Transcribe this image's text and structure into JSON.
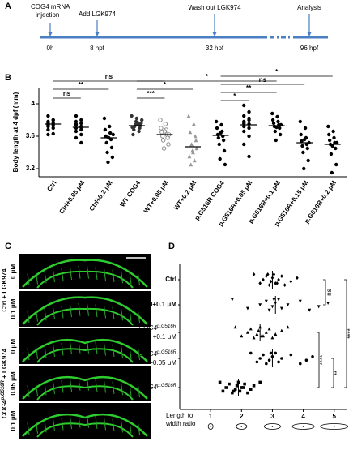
{
  "panel_labels": [
    "A",
    "B",
    "C",
    "D"
  ],
  "timeline": {
    "injection": [
      "COG4 mRNA",
      "injection"
    ],
    "events": [
      "Add LGK974",
      "Wash out LGK974",
      "Analysis"
    ],
    "times": [
      "0h",
      "8 hpf",
      "32 hpf",
      "96 hpf"
    ]
  },
  "microscopy": {
    "groups": [
      {
        "label": "Ctrl + LGK974",
        "doses": [
          "0 μM",
          "0.1 μM"
        ]
      },
      {
        "label": "COG4",
        "sup": "p.G516R",
        "suffix": " + LGK974",
        "doses": [
          "0 μM",
          "0.05 μM",
          "0.1 μM"
        ]
      }
    ]
  },
  "chart_data": [
    {
      "type": "dotplot",
      "ylabel": "Body length at 4 dpf (mm)",
      "ylim": [
        3.1,
        4.2
      ],
      "yticks": [
        3.2,
        3.6,
        4.0
      ],
      "categories": [
        "Ctrl",
        "Ctrl+0.05 μM",
        "Ctrl+0.2 μM",
        "WT COG4",
        "WT+0.05 μM",
        "WT+0.2 μM",
        "p.G516R COG4",
        "p.G516R+0.05 μM",
        "p.G516R+0.1 μM",
        "p.G516R+0.15 μM",
        "p.G516R+0.2 μM"
      ],
      "colors": [
        "#000000",
        "#000000",
        "#000000",
        "#333333",
        "#888888",
        "#999999",
        "#000000",
        "#000000",
        "#000000",
        "#000000",
        "#000000"
      ],
      "markers": [
        "dot",
        "dot",
        "dot",
        "dot",
        "ring",
        "triangle",
        "dot",
        "dot",
        "dot",
        "dot",
        "dot"
      ],
      "values": [
        [
          3.85,
          3.8,
          3.78,
          3.77,
          3.76,
          3.75,
          3.74,
          3.73,
          3.72,
          3.7,
          3.68,
          3.63,
          3.62,
          3.8
        ],
        [
          3.85,
          3.8,
          3.78,
          3.76,
          3.74,
          3.72,
          3.7,
          3.68,
          3.66,
          3.62,
          3.58,
          3.52,
          3.75,
          3.71
        ],
        [
          3.82,
          3.72,
          3.68,
          3.64,
          3.6,
          3.56,
          3.52,
          3.46,
          3.4,
          3.34,
          3.28,
          3.62,
          3.58
        ],
        [
          3.85,
          3.82,
          3.8,
          3.78,
          3.76,
          3.74,
          3.73,
          3.72,
          3.7,
          3.68,
          3.66,
          3.62,
          3.75,
          3.71,
          3.77
        ],
        [
          3.8,
          3.75,
          3.7,
          3.68,
          3.65,
          3.62,
          3.6,
          3.58,
          3.55,
          3.5,
          3.45,
          3.62,
          3.66
        ],
        [
          3.85,
          3.75,
          3.65,
          3.6,
          3.5,
          3.45,
          3.4,
          3.35,
          3.3,
          3.25,
          3.55,
          3.42
        ],
        [
          3.78,
          3.74,
          3.7,
          3.66,
          3.62,
          3.6,
          3.58,
          3.55,
          3.5,
          3.42,
          3.32,
          3.25,
          3.64
        ],
        [
          3.98,
          3.9,
          3.85,
          3.8,
          3.78,
          3.75,
          3.72,
          3.7,
          3.66,
          3.6,
          3.5,
          3.35,
          3.76,
          3.82
        ],
        [
          3.88,
          3.84,
          3.8,
          3.78,
          3.76,
          3.74,
          3.72,
          3.7,
          3.66,
          3.62,
          3.55,
          3.74,
          3.71
        ],
        [
          3.78,
          3.7,
          3.62,
          3.58,
          3.54,
          3.5,
          3.48,
          3.45,
          3.4,
          3.3,
          3.2,
          3.52,
          3.56
        ],
        [
          3.72,
          3.66,
          3.62,
          3.58,
          3.55,
          3.52,
          3.5,
          3.45,
          3.38,
          3.25,
          3.15,
          3.52,
          3.48
        ]
      ],
      "means": [
        3.75,
        3.71,
        3.58,
        3.73,
        3.62,
        3.47,
        3.61,
        3.74,
        3.73,
        3.52,
        3.5
      ],
      "annotations": [
        "ns",
        "**",
        "ns",
        "*",
        "*",
        "***",
        "*",
        "ns",
        "**",
        "*"
      ]
    },
    {
      "type": "hdotplot",
      "xlabel": [
        "Length to",
        "width ratio"
      ],
      "xlim": [
        0,
        5.4
      ],
      "xticks": [
        1,
        2,
        3,
        4,
        5
      ],
      "categories": [
        {
          "label": "Ctrl"
        },
        {
          "label": "Ctrl+0.1 μM"
        },
        {
          "label": "COG4",
          "sup": "p.G516R",
          "line2": "+0.1 μM"
        },
        {
          "label": "COG4",
          "sup": "p.G516R",
          "line2": "+0.05 μM"
        },
        {
          "label": "COG4",
          "sup": "p.G516R"
        }
      ],
      "markers": [
        "diamond",
        "triangle-down",
        "triangle",
        "dot",
        "square"
      ],
      "values": [
        [
          2.4,
          2.6,
          2.7,
          2.8,
          2.9,
          2.95,
          3.0,
          3.05,
          3.1,
          3.2,
          3.3,
          3.4,
          3.6,
          3.8,
          2.85,
          3.15
        ],
        [
          1.7,
          2.2,
          2.6,
          2.8,
          2.9,
          3.0,
          3.1,
          3.2,
          3.3,
          3.5,
          3.9,
          4.2,
          4.5,
          4.8,
          3.05
        ],
        [
          1.8,
          2.0,
          2.2,
          2.3,
          2.4,
          2.5,
          2.55,
          2.6,
          2.7,
          2.8,
          2.9,
          3.0,
          3.1,
          3.3,
          3.5,
          2.65
        ],
        [
          2.3,
          2.5,
          2.6,
          2.7,
          2.8,
          2.9,
          3.0,
          3.1,
          3.2,
          3.3,
          3.6,
          3.9,
          4.1,
          4.3,
          2.95
        ],
        [
          1.3,
          1.4,
          1.5,
          1.6,
          1.7,
          1.8,
          1.85,
          1.9,
          1.95,
          2.0,
          2.1,
          2.2,
          2.3,
          2.4,
          2.6,
          1.75,
          2.05
        ]
      ],
      "means": [
        3.0,
        3.1,
        2.6,
        3.0,
        1.9
      ],
      "annotations": [
        "ns",
        "**",
        "****",
        "****"
      ]
    }
  ]
}
